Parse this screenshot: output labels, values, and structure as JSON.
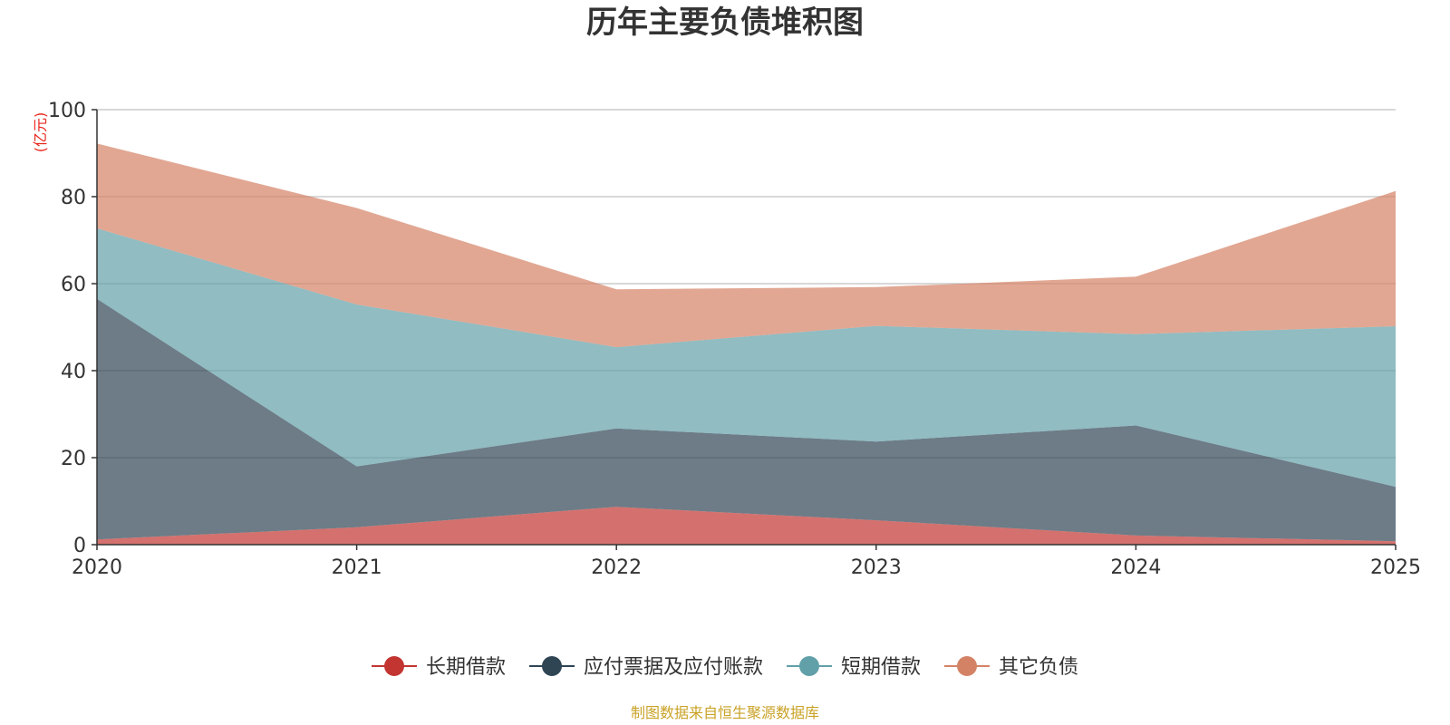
{
  "chart_data": {
    "type": "area",
    "stacked": true,
    "title": "历年主要负债堆积图",
    "unit_label": "(亿元)",
    "xlabel": "",
    "ylabel": "",
    "x": [
      "2020",
      "2021",
      "2022",
      "2023",
      "2024",
      "2025"
    ],
    "ylim": [
      0,
      100
    ],
    "yticks": [
      "0",
      "20",
      "40",
      "60",
      "80",
      "100"
    ],
    "grid": true,
    "legend_position": "bottom",
    "series": [
      {
        "name": "长期借款",
        "color": "#c23531",
        "values": [
          1.2,
          4.0,
          8.7,
          5.6,
          2.1,
          0.8
        ]
      },
      {
        "name": "应付票据及应付账款",
        "color": "#2f4554",
        "values": [
          55.3,
          14.0,
          18.0,
          18.1,
          25.3,
          12.5
        ]
      },
      {
        "name": "短期借款",
        "color": "#61a0a8",
        "values": [
          16.2,
          37.2,
          18.7,
          26.6,
          21.0,
          36.9
        ]
      },
      {
        "name": "其它负债",
        "color": "#d48265",
        "values": [
          19.5,
          22.2,
          13.3,
          8.9,
          13.2,
          31.1
        ]
      }
    ],
    "source_note": "制图数据来自恒生聚源数据库"
  }
}
